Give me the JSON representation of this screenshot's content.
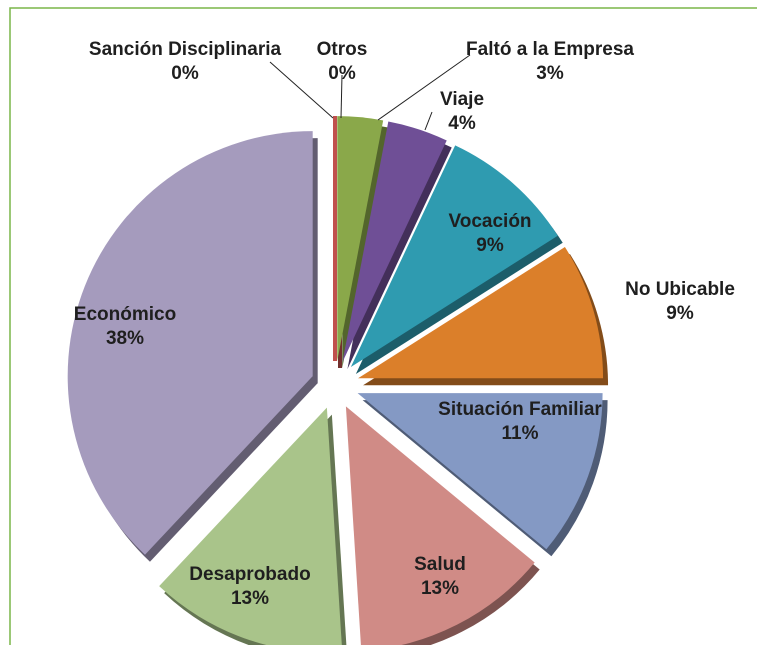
{
  "chart_data": {
    "type": "pie",
    "categories": [
      "Sanción Disciplinaria",
      "Otros",
      "Faltó a la Empresa",
      "Viaje",
      "Vocación",
      "No Ubicable",
      "Situación Familiar",
      "Salud",
      "Desaprobado",
      "Económico"
    ],
    "values": [
      0,
      0,
      3,
      4,
      9,
      9,
      11,
      13,
      13,
      38
    ],
    "value_labels": [
      "0%",
      "0%",
      "3%",
      "4%",
      "9%",
      "9%",
      "11%",
      "13%",
      "13%",
      "38%"
    ],
    "colors": [
      "#4a7ebb",
      "#c0504d",
      "#8aa84a",
      "#6f4f96",
      "#2f9bb0",
      "#db7f2a",
      "#8499c4",
      "#d08b86",
      "#a9c48a",
      "#a59bbd"
    ]
  }
}
